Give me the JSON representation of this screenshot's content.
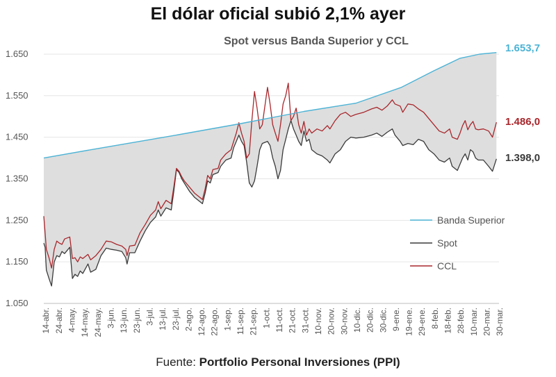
{
  "chart_data": {
    "type": "line",
    "title": "El dólar oficial subió 2,1% ayer",
    "subtitle": "Spot versus Banda Superior y CCL",
    "source_prefix": "Fuente: ",
    "source_name": "Portfolio Personal Inversiones (PPI)",
    "ylim": [
      1050,
      1680
    ],
    "yticks": [
      1050,
      1150,
      1250,
      1350,
      1450,
      1550,
      1650
    ],
    "ytick_labels": [
      "1.050",
      "1.150",
      "1.250",
      "1.350",
      "1.450",
      "1.550",
      "1.650"
    ],
    "x_range_days": [
      0,
      350
    ],
    "xtick_labels": [
      "14-abr.",
      "24-abr.",
      "4-may.",
      "14-may.",
      "24-may.",
      "3-jun.",
      "13-jun.",
      "23-jun.",
      "3-jul.",
      "13-jul.",
      "23-jul.",
      "2-ago.",
      "12-ago.",
      "22-ago.",
      "1-sep.",
      "11-sep.",
      "21-sep.",
      "1-oct.",
      "11-oct.",
      "21-oct.",
      "31-oct.",
      "10-nov.",
      "20-nov.",
      "30-nov.",
      "10-dic.",
      "20-dic.",
      "30-dic.",
      "9-ene.",
      "19-ene.",
      "29-ene.",
      "8-feb.",
      "18-feb.",
      "28-feb.",
      "10-mar.",
      "20-mar.",
      "30-mar."
    ],
    "series": [
      {
        "name": "Banda Superior",
        "color": "#4bb3d6",
        "end_label": "1.653,7",
        "points": [
          [
            0,
            1400
          ],
          [
            40,
            1422
          ],
          [
            100,
            1454
          ],
          [
            150,
            1482
          ],
          [
            200,
            1512
          ],
          [
            240,
            1532
          ],
          [
            275,
            1570
          ],
          [
            300,
            1610
          ],
          [
            320,
            1640
          ],
          [
            335,
            1650
          ],
          [
            348,
            1653.7
          ]
        ]
      },
      {
        "name": "Spot",
        "color": "#3a3a3a",
        "end_label": "1.398,0",
        "points": [
          [
            0,
            1195
          ],
          [
            1,
            1185
          ],
          [
            2,
            1130
          ],
          [
            4,
            1110
          ],
          [
            6,
            1092
          ],
          [
            8,
            1150
          ],
          [
            10,
            1165
          ],
          [
            12,
            1162
          ],
          [
            14,
            1175
          ],
          [
            16,
            1170
          ],
          [
            20,
            1185
          ],
          [
            22,
            1110
          ],
          [
            24,
            1120
          ],
          [
            26,
            1115
          ],
          [
            28,
            1128
          ],
          [
            30,
            1122
          ],
          [
            34,
            1145
          ],
          [
            36,
            1125
          ],
          [
            40,
            1132
          ],
          [
            44,
            1165
          ],
          [
            48,
            1183
          ],
          [
            52,
            1180
          ],
          [
            56,
            1178
          ],
          [
            60,
            1175
          ],
          [
            63,
            1160
          ],
          [
            64,
            1145
          ],
          [
            66,
            1172
          ],
          [
            70,
            1172
          ],
          [
            74,
            1200
          ],
          [
            78,
            1225
          ],
          [
            82,
            1245
          ],
          [
            86,
            1258
          ],
          [
            88,
            1275
          ],
          [
            90,
            1260
          ],
          [
            94,
            1280
          ],
          [
            98,
            1275
          ],
          [
            100,
            1320
          ],
          [
            102,
            1372
          ],
          [
            104,
            1365
          ],
          [
            106,
            1350
          ],
          [
            108,
            1340
          ],
          [
            112,
            1320
          ],
          [
            116,
            1305
          ],
          [
            120,
            1295
          ],
          [
            122,
            1290
          ],
          [
            124,
            1315
          ],
          [
            126,
            1345
          ],
          [
            128,
            1340
          ],
          [
            130,
            1360
          ],
          [
            134,
            1365
          ],
          [
            136,
            1380
          ],
          [
            140,
            1395
          ],
          [
            144,
            1400
          ],
          [
            146,
            1425
          ],
          [
            148,
            1440
          ],
          [
            150,
            1455
          ],
          [
            152,
            1440
          ],
          [
            154,
            1430
          ],
          [
            156,
            1390
          ],
          [
            158,
            1340
          ],
          [
            160,
            1330
          ],
          [
            162,
            1345
          ],
          [
            164,
            1380
          ],
          [
            166,
            1420
          ],
          [
            168,
            1435
          ],
          [
            172,
            1440
          ],
          [
            174,
            1430
          ],
          [
            176,
            1400
          ],
          [
            178,
            1380
          ],
          [
            180,
            1350
          ],
          [
            182,
            1370
          ],
          [
            184,
            1420
          ],
          [
            186,
            1445
          ],
          [
            188,
            1470
          ],
          [
            190,
            1490
          ],
          [
            192,
            1470
          ],
          [
            194,
            1455
          ],
          [
            196,
            1440
          ],
          [
            198,
            1430
          ],
          [
            200,
            1465
          ],
          [
            202,
            1440
          ],
          [
            204,
            1445
          ],
          [
            206,
            1420
          ],
          [
            210,
            1410
          ],
          [
            214,
            1405
          ],
          [
            218,
            1395
          ],
          [
            220,
            1388
          ],
          [
            224,
            1410
          ],
          [
            228,
            1420
          ],
          [
            232,
            1440
          ],
          [
            236,
            1450
          ],
          [
            240,
            1448
          ],
          [
            246,
            1450
          ],
          [
            252,
            1455
          ],
          [
            256,
            1460
          ],
          [
            260,
            1452
          ],
          [
            264,
            1462
          ],
          [
            268,
            1470
          ],
          [
            270,
            1455
          ],
          [
            274,
            1440
          ],
          [
            276,
            1430
          ],
          [
            280,
            1435
          ],
          [
            284,
            1432
          ],
          [
            288,
            1445
          ],
          [
            292,
            1440
          ],
          [
            296,
            1420
          ],
          [
            300,
            1410
          ],
          [
            304,
            1395
          ],
          [
            308,
            1390
          ],
          [
            312,
            1400
          ],
          [
            314,
            1380
          ],
          [
            318,
            1370
          ],
          [
            320,
            1385
          ],
          [
            322,
            1400
          ],
          [
            324,
            1410
          ],
          [
            326,
            1395
          ],
          [
            328,
            1420
          ],
          [
            330,
            1415
          ],
          [
            332,
            1400
          ],
          [
            334,
            1395
          ],
          [
            338,
            1395
          ],
          [
            342,
            1380
          ],
          [
            345,
            1368
          ],
          [
            348,
            1398
          ]
        ]
      },
      {
        "name": "CCL",
        "color": "#a8262b",
        "end_label": "1.486,0",
        "points": [
          [
            0,
            1260
          ],
          [
            1,
            1220
          ],
          [
            2,
            1180
          ],
          [
            4,
            1160
          ],
          [
            6,
            1135
          ],
          [
            8,
            1180
          ],
          [
            10,
            1200
          ],
          [
            12,
            1195
          ],
          [
            14,
            1192
          ],
          [
            16,
            1205
          ],
          [
            20,
            1210
          ],
          [
            22,
            1158
          ],
          [
            24,
            1160
          ],
          [
            26,
            1150
          ],
          [
            28,
            1162
          ],
          [
            30,
            1158
          ],
          [
            34,
            1168
          ],
          [
            36,
            1155
          ],
          [
            40,
            1165
          ],
          [
            44,
            1180
          ],
          [
            48,
            1200
          ],
          [
            52,
            1198
          ],
          [
            56,
            1192
          ],
          [
            60,
            1188
          ],
          [
            63,
            1180
          ],
          [
            64,
            1165
          ],
          [
            66,
            1188
          ],
          [
            70,
            1190
          ],
          [
            74,
            1220
          ],
          [
            78,
            1240
          ],
          [
            82,
            1262
          ],
          [
            86,
            1275
          ],
          [
            88,
            1295
          ],
          [
            90,
            1278
          ],
          [
            94,
            1298
          ],
          [
            98,
            1290
          ],
          [
            100,
            1330
          ],
          [
            102,
            1375
          ],
          [
            104,
            1368
          ],
          [
            106,
            1355
          ],
          [
            108,
            1345
          ],
          [
            112,
            1330
          ],
          [
            116,
            1315
          ],
          [
            120,
            1305
          ],
          [
            122,
            1300
          ],
          [
            124,
            1325
          ],
          [
            126,
            1358
          ],
          [
            128,
            1350
          ],
          [
            130,
            1372
          ],
          [
            134,
            1375
          ],
          [
            136,
            1395
          ],
          [
            140,
            1410
          ],
          [
            144,
            1420
          ],
          [
            146,
            1440
          ],
          [
            148,
            1460
          ],
          [
            150,
            1485
          ],
          [
            152,
            1460
          ],
          [
            154,
            1440
          ],
          [
            156,
            1400
          ],
          [
            158,
            1410
          ],
          [
            160,
            1490
          ],
          [
            162,
            1560
          ],
          [
            164,
            1520
          ],
          [
            166,
            1470
          ],
          [
            168,
            1480
          ],
          [
            172,
            1570
          ],
          [
            174,
            1530
          ],
          [
            176,
            1480
          ],
          [
            178,
            1460
          ],
          [
            180,
            1440
          ],
          [
            182,
            1480
          ],
          [
            184,
            1530
          ],
          [
            186,
            1550
          ],
          [
            188,
            1580
          ],
          [
            190,
            1490
          ],
          [
            192,
            1500
          ],
          [
            194,
            1520
          ],
          [
            196,
            1480
          ],
          [
            198,
            1460
          ],
          [
            200,
            1488
          ],
          [
            202,
            1455
          ],
          [
            204,
            1470
          ],
          [
            206,
            1460
          ],
          [
            210,
            1470
          ],
          [
            214,
            1465
          ],
          [
            218,
            1478
          ],
          [
            220,
            1470
          ],
          [
            224,
            1490
          ],
          [
            228,
            1505
          ],
          [
            232,
            1510
          ],
          [
            236,
            1500
          ],
          [
            240,
            1505
          ],
          [
            246,
            1510
          ],
          [
            252,
            1518
          ],
          [
            256,
            1522
          ],
          [
            260,
            1515
          ],
          [
            264,
            1525
          ],
          [
            268,
            1540
          ],
          [
            270,
            1530
          ],
          [
            274,
            1525
          ],
          [
            276,
            1510
          ],
          [
            280,
            1530
          ],
          [
            284,
            1528
          ],
          [
            288,
            1518
          ],
          [
            292,
            1510
          ],
          [
            296,
            1495
          ],
          [
            300,
            1480
          ],
          [
            304,
            1465
          ],
          [
            308,
            1460
          ],
          [
            312,
            1470
          ],
          [
            314,
            1450
          ],
          [
            318,
            1445
          ],
          [
            320,
            1460
          ],
          [
            322,
            1478
          ],
          [
            324,
            1490
          ],
          [
            326,
            1468
          ],
          [
            328,
            1480
          ],
          [
            330,
            1488
          ],
          [
            332,
            1470
          ],
          [
            334,
            1468
          ],
          [
            338,
            1470
          ],
          [
            342,
            1465
          ],
          [
            345,
            1450
          ],
          [
            348,
            1486
          ]
        ]
      }
    ],
    "legend": [
      "Banda Superior",
      "Spot",
      "CCL"
    ],
    "legend_position": "right"
  }
}
